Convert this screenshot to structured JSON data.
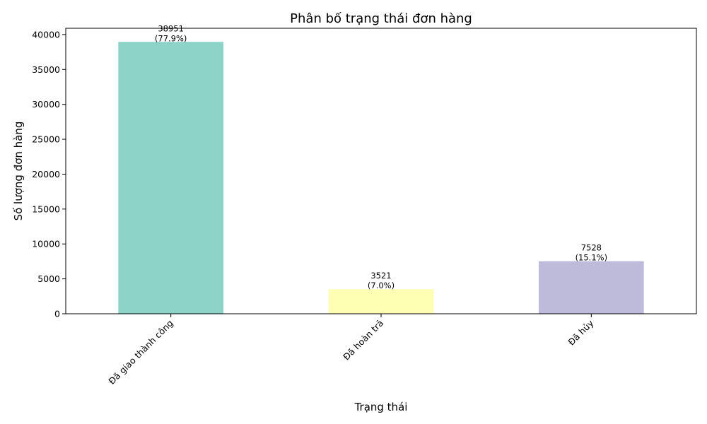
{
  "chart_data": {
    "type": "bar",
    "title": "Phân bố trạng thái đơn hàng",
    "xlabel": "Trạng thái",
    "ylabel": "Số lượng đơn hàng",
    "categories": [
      "Đã giao thành công",
      "Đã hoàn trả",
      "Đã hủy"
    ],
    "values": [
      38951,
      3521,
      7528
    ],
    "data_labels": [
      [
        "38951",
        "(77.9%)"
      ],
      [
        "3521",
        "(7.0%)"
      ],
      [
        "7528",
        "(15.1%)"
      ]
    ],
    "colors": [
      "#8dd3c7",
      "#ffffb3",
      "#bebada"
    ],
    "ylim": [
      0,
      40900
    ],
    "yticks": [
      0,
      5000,
      10000,
      15000,
      20000,
      25000,
      30000,
      35000,
      40000
    ],
    "grid": false,
    "legend": "none"
  }
}
